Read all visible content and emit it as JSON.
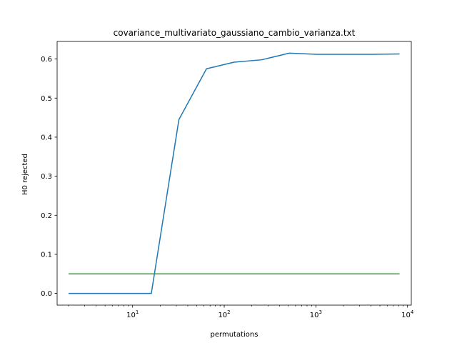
{
  "chart_data": {
    "type": "line",
    "title": "covariance_multivariato_gaussiano_cambio_varianza.txt",
    "xlabel": "permutations",
    "ylabel": "H0 rejected",
    "xscale": "log",
    "xlim": [
      1.5,
      11000
    ],
    "ylim": [
      -0.03,
      0.645
    ],
    "x_ticks": [
      {
        "value": 10,
        "base": "10",
        "exp": "1"
      },
      {
        "value": 100,
        "base": "10",
        "exp": "2"
      },
      {
        "value": 1000,
        "base": "10",
        "exp": "3"
      },
      {
        "value": 10000,
        "base": "10",
        "exp": "4"
      }
    ],
    "y_ticks": [
      {
        "value": 0.0,
        "label": "0.0"
      },
      {
        "value": 0.1,
        "label": "0.1"
      },
      {
        "value": 0.2,
        "label": "0.2"
      },
      {
        "value": 0.3,
        "label": "0.3"
      },
      {
        "value": 0.4,
        "label": "0.4"
      },
      {
        "value": 0.5,
        "label": "0.5"
      },
      {
        "value": 0.6,
        "label": "0.6"
      }
    ],
    "grid": false,
    "series": [
      {
        "color": "#1f77b4",
        "x": [
          2,
          4,
          8,
          16,
          32,
          64,
          128,
          256,
          512,
          1024,
          2048,
          4096,
          8192
        ],
        "y": [
          0.0,
          0.0,
          0.0,
          0.0,
          0.445,
          0.575,
          0.592,
          0.598,
          0.615,
          0.612,
          0.612,
          0.612,
          0.613
        ]
      },
      {
        "color": "#2ca02c",
        "x": [
          2,
          8192
        ],
        "y": [
          0.05,
          0.05
        ]
      }
    ]
  }
}
